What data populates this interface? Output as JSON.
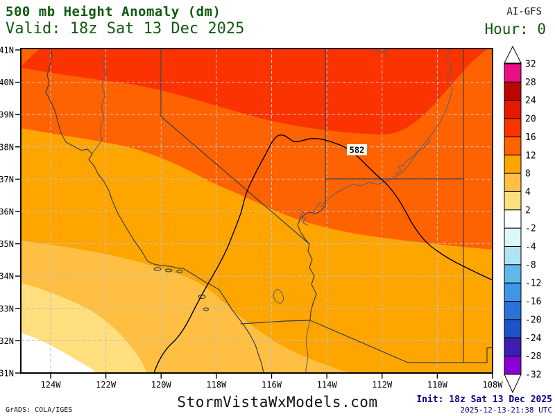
{
  "header": {
    "title": "500 mb Height Anomaly (dm)",
    "valid": "Valid: 18z Sat 13 Dec 2025",
    "model": "AI-GFS",
    "hour": "Hour: 0"
  },
  "footer": {
    "grads": "GrADS: COLA/IGES",
    "brand": "StormVistaWxModels.com",
    "init": "Init: 18z Sat 13 Dec 2025",
    "init_utc": "2025-12-13-21:38 UTC"
  },
  "colors": {
    "title_green": "#0F5A0F",
    "init_navy": "#00008B",
    "band_16_20": "#FA3300",
    "band_12_16": "#FF6200",
    "band_8_12": "#FFA500",
    "band_4_8": "#FFBF42",
    "band_2_4": "#FFDF7E",
    "band_neutral": "#FFFFFF"
  },
  "map": {
    "contour_label": "582",
    "lat_ticks": [
      "41N",
      "40N",
      "39N",
      "38N",
      "37N",
      "36N",
      "35N",
      "34N",
      "33N",
      "32N",
      "31N"
    ],
    "lon_ticks": [
      "124W",
      "122W",
      "120W",
      "118W",
      "116W",
      "114W",
      "112W",
      "110W",
      "108W"
    ]
  },
  "colorbar": {
    "labels": [
      "32",
      "28",
      "24",
      "20",
      "16",
      "12",
      "8",
      "4",
      "2",
      "-2",
      "-4",
      "-8",
      "-12",
      "-16",
      "-20",
      "-24",
      "-28",
      "-32"
    ],
    "colors": [
      "#EB0E87",
      "#BB0500",
      "#E31A00",
      "#FA3300",
      "#FF6200",
      "#FFA500",
      "#FFBF42",
      "#FFDF7E",
      "#FFFFFF",
      "#D9F9F9",
      "#AEE2F5",
      "#62B8EC",
      "#3E97E4",
      "#2B72D8",
      "#1E52C8",
      "#3A20B0",
      "#8A00D0"
    ]
  },
  "chart_data": {
    "type": "filled_contour_map",
    "title": "500 mb Height Anomaly (dm)",
    "units": "dm",
    "model": "AI-GFS",
    "valid_time": "18z Sat 13 Dec 2025",
    "forecast_hour": 0,
    "init_time": "18z Sat 13 Dec 2025",
    "init_time_utc": "2025-12-13-21:38 UTC",
    "source_credit": "GrADS: COLA/IGES",
    "brand": "StormVistaWxModels.com",
    "extent": {
      "lat_range": [
        "31N",
        "41N"
      ],
      "lon_range": [
        "124W",
        "108W"
      ]
    },
    "lat_ticks": [
      "41N",
      "40N",
      "39N",
      "38N",
      "37N",
      "36N",
      "35N",
      "34N",
      "33N",
      "32N",
      "31N"
    ],
    "lon_ticks": [
      "124W",
      "122W",
      "120W",
      "118W",
      "116W",
      "114W",
      "112W",
      "110W",
      "108W"
    ],
    "colorbar_boundary_levels": [
      32,
      28,
      24,
      20,
      16,
      12,
      8,
      4,
      2,
      -2,
      -4,
      -8,
      -12,
      -16,
      -20,
      -24,
      -28,
      -32
    ],
    "colorbar_segment_colors": [
      "#EB0E87",
      "#BB0500",
      "#E31A00",
      "#FA3300",
      "#FF6200",
      "#FFA500",
      "#FFBF42",
      "#FFDF7E",
      "#FFFFFF",
      "#D9F9F9",
      "#AEE2F5",
      "#62B8EC",
      "#3E97E4",
      "#2B72D8",
      "#1E52C8",
      "#3A20B0",
      "#8A00D0"
    ],
    "anomaly_bands_visible": [
      {
        "range_dm": "16 to 20",
        "color": "#FA3300",
        "where": "northern strip of map (N California / N Nevada / N Utah)"
      },
      {
        "range_dm": "12 to 16",
        "color": "#FF6200",
        "where": "broad band across Nevada, Utah, northern Arizona"
      },
      {
        "range_dm": "8 to 12",
        "color": "#FFA500",
        "where": "central California through central/SE Arizona and SE corner"
      },
      {
        "range_dm": "4 to 8",
        "color": "#FFBF42",
        "where": "southern California coast and NW Baja"
      },
      {
        "range_dm": "2 to 4",
        "color": "#FFDF7E",
        "where": "offshore SW area"
      },
      {
        "range_dm": "-2 to 2",
        "color": "#FFFFFF",
        "where": "far SW ocean corner"
      }
    ],
    "height_contour_labels": [
      {
        "value_dm": 582,
        "approx_lat": "37.9N",
        "approx_lon": "113.2W"
      }
    ]
  }
}
